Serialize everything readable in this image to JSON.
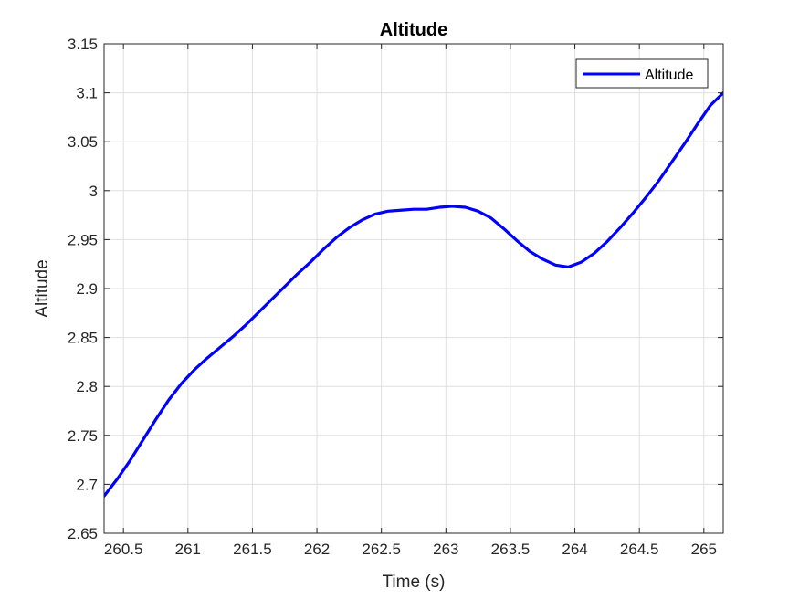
{
  "chart_data": {
    "type": "line",
    "title": "Altitude",
    "xlabel": "Time (s)",
    "ylabel": "Altitude",
    "xlim": [
      260.35,
      265.15
    ],
    "ylim": [
      2.65,
      3.15
    ],
    "grid": true,
    "legend_position": "top-right",
    "x_ticks": [
      {
        "value": 260.5,
        "label": "260.5"
      },
      {
        "value": 261,
        "label": "261"
      },
      {
        "value": 261.5,
        "label": "261.5"
      },
      {
        "value": 262,
        "label": "262"
      },
      {
        "value": 262.5,
        "label": "262.5"
      },
      {
        "value": 263,
        "label": "263"
      },
      {
        "value": 263.5,
        "label": "263.5"
      },
      {
        "value": 264,
        "label": "264"
      },
      {
        "value": 264.5,
        "label": "264.5"
      },
      {
        "value": 265,
        "label": "265"
      }
    ],
    "y_ticks": [
      {
        "value": 2.65,
        "label": "2.65"
      },
      {
        "value": 2.7,
        "label": "2.7"
      },
      {
        "value": 2.75,
        "label": "2.75"
      },
      {
        "value": 2.8,
        "label": "2.8"
      },
      {
        "value": 2.85,
        "label": "2.85"
      },
      {
        "value": 2.9,
        "label": "2.9"
      },
      {
        "value": 2.95,
        "label": "2.95"
      },
      {
        "value": 3,
        "label": "3"
      },
      {
        "value": 3.05,
        "label": "3.05"
      },
      {
        "value": 3.1,
        "label": "3.1"
      },
      {
        "value": 3.15,
        "label": "3.15"
      }
    ],
    "series": [
      {
        "name": "Altitude",
        "color": "#0000ff",
        "x": [
          260.35,
          260.45,
          260.55,
          260.65,
          260.75,
          260.85,
          260.95,
          261.05,
          261.15,
          261.25,
          261.35,
          261.45,
          261.55,
          261.65,
          261.75,
          261.85,
          261.95,
          262.05,
          262.15,
          262.25,
          262.35,
          262.45,
          262.55,
          262.65,
          262.75,
          262.85,
          262.95,
          263.05,
          263.15,
          263.25,
          263.35,
          263.45,
          263.55,
          263.65,
          263.75,
          263.85,
          263.95,
          264.05,
          264.15,
          264.25,
          264.35,
          264.45,
          264.55,
          264.65,
          264.75,
          264.85,
          264.95,
          265.05,
          265.15
        ],
        "y": [
          2.688,
          2.705,
          2.724,
          2.745,
          2.766,
          2.786,
          2.803,
          2.817,
          2.829,
          2.84,
          2.851,
          2.863,
          2.876,
          2.889,
          2.902,
          2.915,
          2.927,
          2.94,
          2.952,
          2.962,
          2.97,
          2.976,
          2.979,
          2.98,
          2.981,
          2.981,
          2.983,
          2.984,
          2.983,
          2.979,
          2.972,
          2.961,
          2.949,
          2.938,
          2.93,
          2.924,
          2.922,
          2.927,
          2.936,
          2.948,
          2.962,
          2.977,
          2.993,
          3.01,
          3.029,
          3.048,
          3.068,
          3.087,
          3.1
        ]
      }
    ]
  }
}
